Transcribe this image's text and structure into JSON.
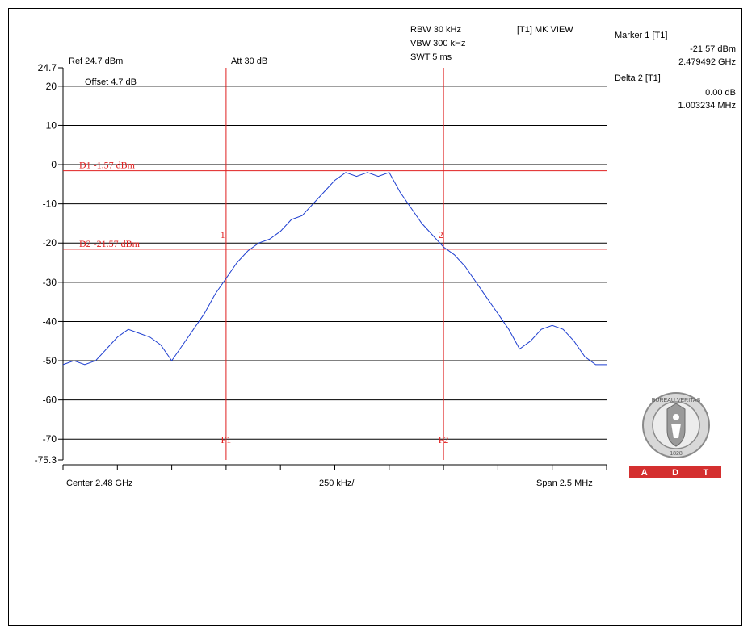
{
  "header": {
    "rbw": "RBW 30 kHz",
    "vbw": "VBW 300 kHz",
    "swt": "SWT 5 ms",
    "view": "[T1] MK VIEW",
    "ref": "Ref 24.7 dBm",
    "att": "Att  30 dB",
    "offset": "Offset 4.7 dB"
  },
  "markers": {
    "marker1_title": "Marker 1 [T1]",
    "marker1_level": "-21.57 dBm",
    "marker1_freq": "2.479492 GHz",
    "delta2_title": "Delta 2 [T1]",
    "delta2_level": "0.00 dB",
    "delta2_freq": "1.003234 MHz",
    "m1_label": "1",
    "m2_label": "2"
  },
  "footer": {
    "center": "Center 2.48 GHz",
    "div": "250 kHz/",
    "span": "Span 2.5 MHz"
  },
  "logo": {
    "text": "BUREAU VERITAS",
    "year": "1828",
    "adt": [
      "A",
      "D",
      "T"
    ]
  },
  "colors": {
    "trace": "#1f3fd0",
    "lines": "#e02020",
    "grid": "#000000",
    "adt_bg": "#d42f2f"
  },
  "chart_data": {
    "type": "line",
    "ylim": [
      -75.3,
      24.7
    ],
    "y_tick_labels": [
      "24.7",
      "20",
      "10",
      "0",
      "-10",
      "-20",
      "-30",
      "-40",
      "-50",
      "-60",
      "-70",
      "-75.3"
    ],
    "x_range_mhz": [
      2478.75,
      2481.25
    ],
    "x_divisions": 10,
    "display_lines": [
      {
        "label": "D1 -1.57 dBm",
        "value": -1.57
      },
      {
        "label": "D2 -21.57 dBm",
        "value": -21.57
      }
    ],
    "freq_lines": [
      {
        "label": "F1",
        "x": 2479.5
      },
      {
        "label": "F2",
        "x": 2480.5
      }
    ],
    "marker_points": [
      {
        "label": "1",
        "x": 2479.492,
        "y": -21.57
      },
      {
        "label": "2",
        "x": 2480.495,
        "y": -21.57
      }
    ],
    "series": [
      {
        "x": [
          2478.75,
          2478.8,
          2478.85,
          2478.9,
          2478.95,
          2479.0,
          2479.05,
          2479.1,
          2479.15,
          2479.2,
          2479.25,
          2479.3,
          2479.35,
          2479.4,
          2479.45,
          2479.5,
          2479.55,
          2479.6,
          2479.65,
          2479.7,
          2479.75,
          2479.8,
          2479.85,
          2479.9,
          2479.95,
          2480.0,
          2480.05,
          2480.1,
          2480.15,
          2480.2,
          2480.25,
          2480.3,
          2480.35,
          2480.4,
          2480.45,
          2480.5,
          2480.55,
          2480.6,
          2480.65,
          2480.7,
          2480.75,
          2480.8,
          2480.85,
          2480.9,
          2480.95,
          2481.0,
          2481.05,
          2481.1,
          2481.15,
          2481.2,
          2481.25
        ],
        "y": [
          -51,
          -50,
          -51,
          -50,
          -47,
          -44,
          -42,
          -43,
          -44,
          -46,
          -50,
          -46,
          -42,
          -38,
          -33,
          -29,
          -25,
          -22,
          -20,
          -19,
          -17,
          -14,
          -13,
          -10,
          -7,
          -4,
          -2,
          -3,
          -2,
          -3,
          -2,
          -7,
          -11,
          -15,
          -18,
          -21,
          -23,
          -26,
          -30,
          -34,
          -38,
          -42,
          -47,
          -45,
          -42,
          -41,
          -42,
          -45,
          -49,
          -51,
          -51
        ]
      }
    ]
  }
}
